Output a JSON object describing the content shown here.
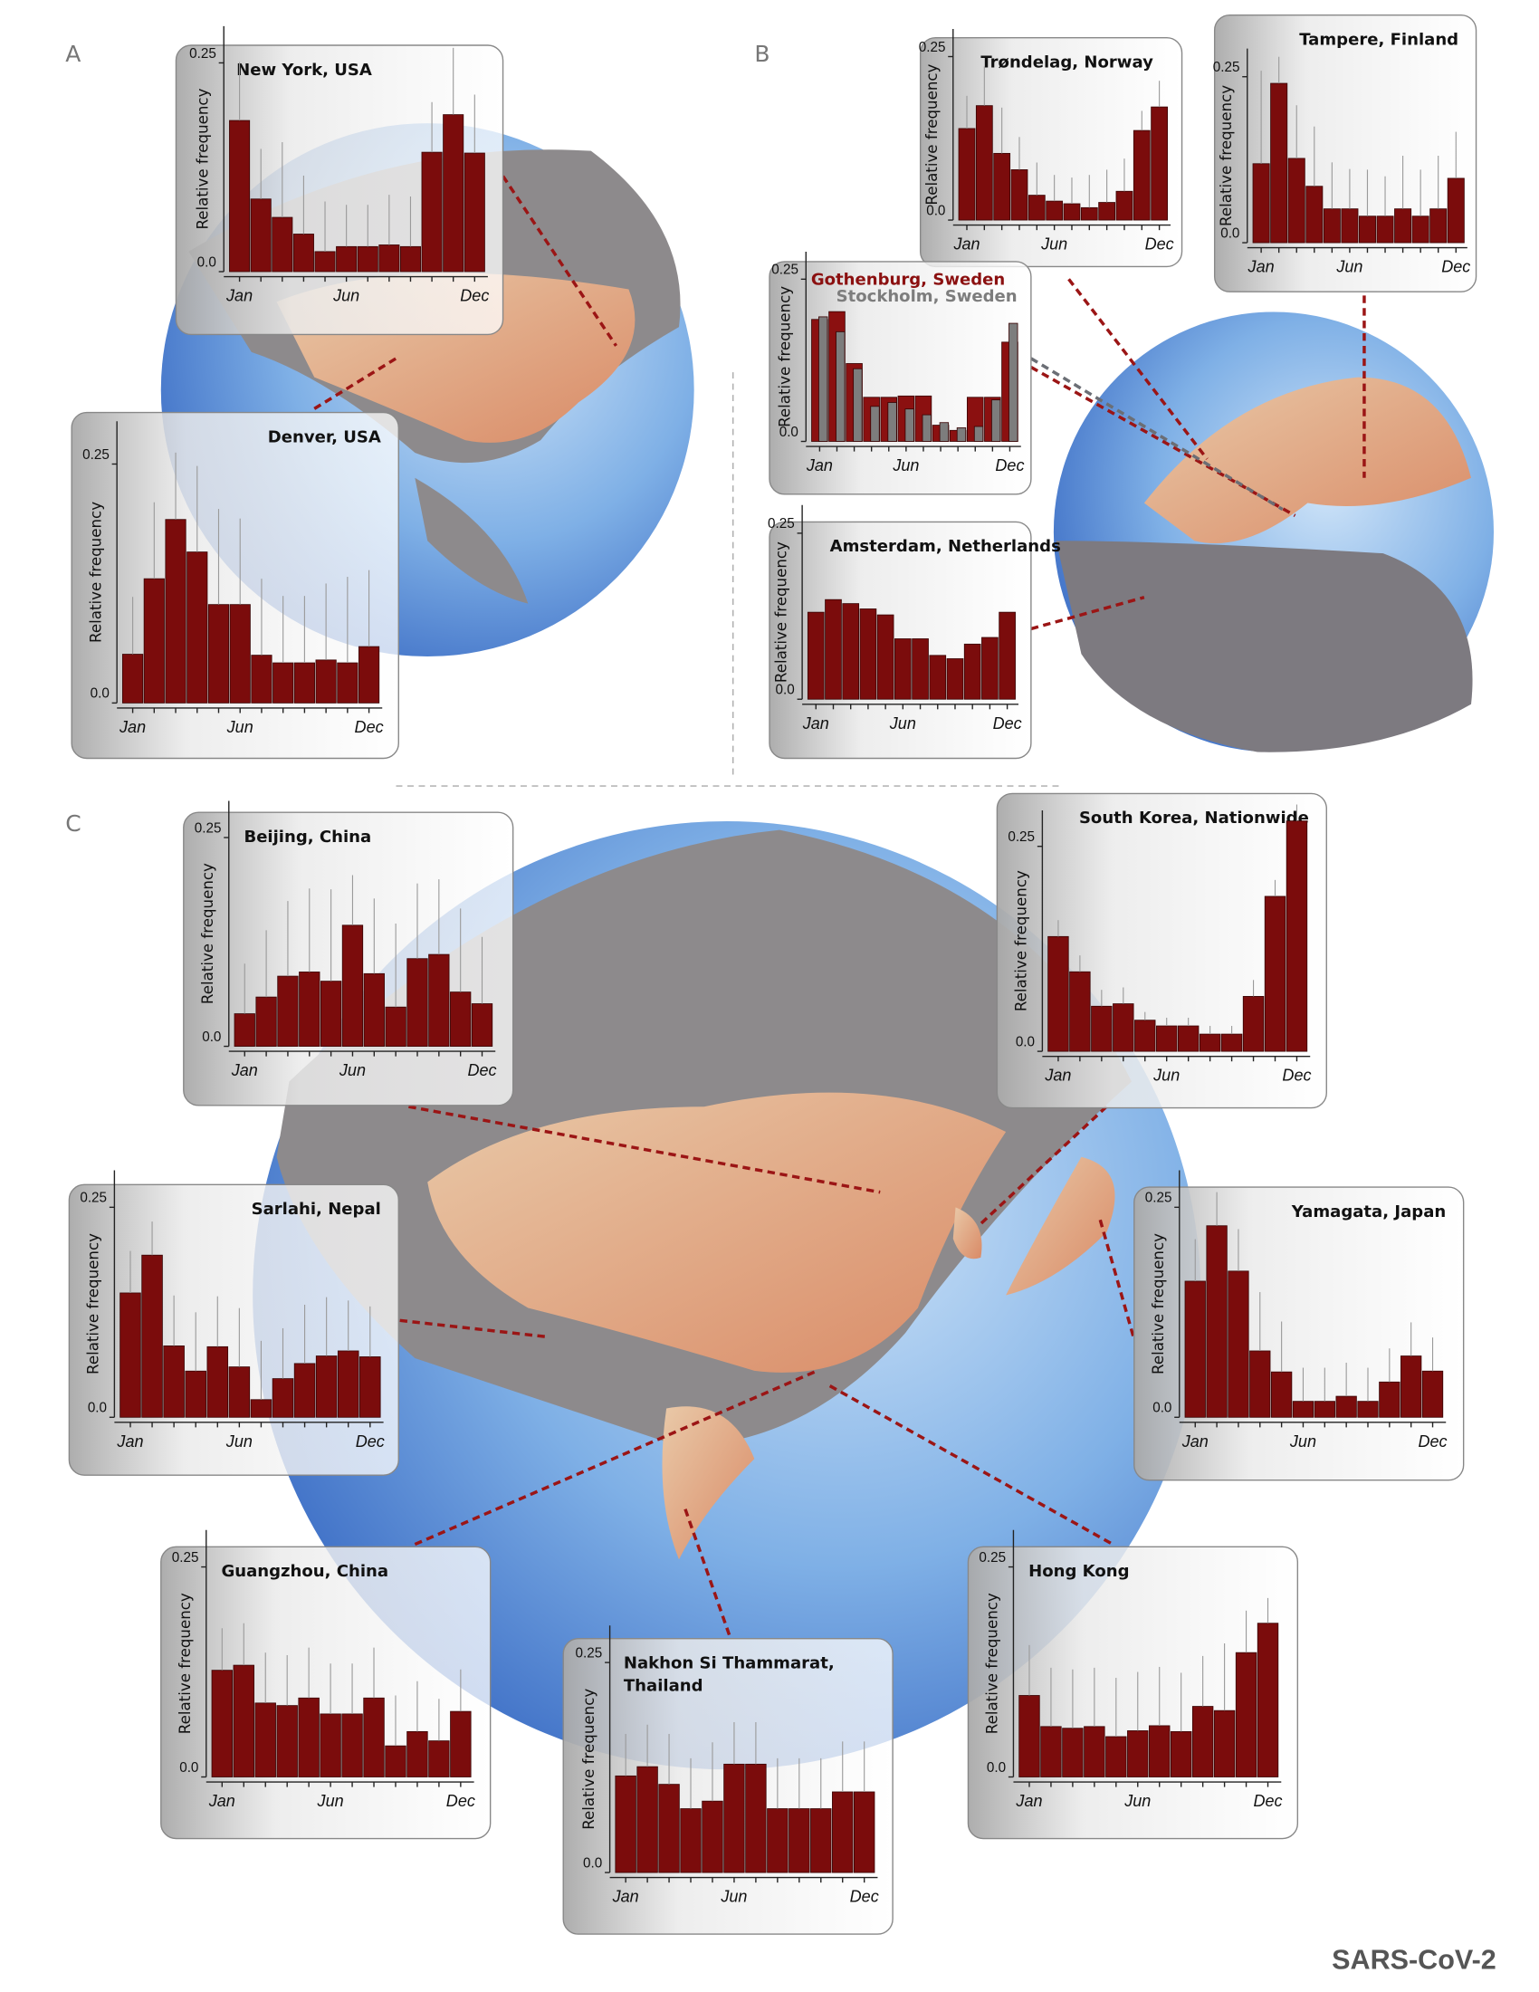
{
  "panel_labels": [
    "A",
    "B",
    "C"
  ],
  "footer": "SARS-CoV-2",
  "chart_data": [
    {
      "type": "bar",
      "title": "New York, USA",
      "ylabel": "Relative frequency",
      "categories": [
        "Jan",
        null,
        null,
        null,
        null,
        "Jun",
        null,
        null,
        null,
        null,
        null,
        "Dec"
      ],
      "series": [
        {
          "color": "#7b0c0c",
          "values": [
            0.181,
            0.087,
            0.065,
            0.045,
            0.024,
            0.03,
            0.03,
            0.032,
            0.03,
            0.143,
            0.188,
            0.142
          ],
          "errors": [
            0.07,
            0.06,
            0.09,
            0.07,
            0.06,
            0.05,
            0.05,
            0.06,
            0.06,
            0.06,
            0.08,
            0.07
          ]
        }
      ],
      "ylim": [
        0,
        0.3
      ],
      "yticks": [
        {
          "value": 0,
          "label": "0.0"
        },
        0.25
      ]
    },
    {
      "type": "bar",
      "title": "Denver, USA",
      "ylabel": "Relative frequency",
      "categories": [
        "Jan",
        null,
        null,
        null,
        null,
        "Jun",
        null,
        null,
        null,
        null,
        null,
        "Dec"
      ],
      "series": [
        {
          "color": "#7b0c0c",
          "values": [
            0.051,
            0.13,
            0.192,
            0.158,
            0.103,
            0.103,
            0.05,
            0.042,
            0.042,
            0.045,
            0.042,
            0.059
          ],
          "errors": [
            0.06,
            0.08,
            0.07,
            0.09,
            0.1,
            0.09,
            0.08,
            0.07,
            0.07,
            0.08,
            0.09,
            0.08
          ]
        }
      ],
      "ylim": [
        0,
        0.3
      ],
      "yticks": [
        {
          "value": 0,
          "label": "0.0"
        },
        0.25
      ]
    },
    {
      "type": "bar",
      "title": "Trøndelag, Norway",
      "ylabel": "Relative frequency",
      "categories": [
        "Jan",
        null,
        null,
        null,
        null,
        "Jun",
        null,
        null,
        null,
        null,
        null,
        "Dec"
      ],
      "series": [
        {
          "color": "#7b0c0c",
          "values": [
            0.14,
            0.175,
            0.102,
            0.077,
            0.038,
            0.029,
            0.025,
            0.019,
            0.027,
            0.044,
            0.137,
            0.173
          ],
          "errors": [
            0.05,
            0.06,
            0.07,
            0.05,
            0.05,
            0.04,
            0.04,
            0.05,
            0.05,
            0.05,
            0.03,
            0.04
          ]
        }
      ],
      "ylim": [
        0,
        0.3
      ],
      "yticks": [
        {
          "value": 0,
          "label": "0.0"
        },
        0.25
      ]
    },
    {
      "type": "bar",
      "title": "Tampere, Finland",
      "ylabel": "Relative frequency",
      "categories": [
        "Jan",
        null,
        null,
        null,
        null,
        "Jun",
        null,
        null,
        null,
        null,
        null,
        "Dec"
      ],
      "series": [
        {
          "color": "#7b0c0c",
          "values": [
            0.119,
            0.24,
            0.127,
            0.085,
            0.051,
            0.051,
            0.04,
            0.04,
            0.051,
            0.04,
            0.051,
            0.097
          ],
          "errors": [
            0.14,
            0.04,
            0.08,
            0.09,
            0.07,
            0.06,
            0.07,
            0.06,
            0.08,
            0.07,
            0.08,
            0.07
          ]
        }
      ],
      "ylim": [
        0,
        0.3
      ],
      "yticks": [
        {
          "value": 0,
          "label": "0.0"
        },
        0.25
      ]
    },
    {
      "type": "bar",
      "ylabel": "Relative frequency",
      "categories": [
        "Jan",
        null,
        null,
        null,
        null,
        "Jun",
        null,
        null,
        null,
        null,
        null,
        "Dec"
      ],
      "series": [
        {
          "name": "Gothenburg, Sweden",
          "color": "#8b1010",
          "values": [
            0.188,
            0.2,
            0.12,
            0.068,
            0.068,
            0.07,
            0.07,
            0.025,
            0.017,
            0.068,
            0.068,
            0.153
          ]
        },
        {
          "name": "Stockholm, Sweden",
          "color": "#7d7d7d",
          "values": [
            0.192,
            0.169,
            0.112,
            0.054,
            0.06,
            0.05,
            0.041,
            0.029,
            0.021,
            0.023,
            0.064,
            0.182
          ]
        }
      ],
      "ylim": [
        0,
        0.3
      ],
      "yticks": [
        {
          "value": 0,
          "label": "0.0"
        },
        0.25
      ]
    },
    {
      "type": "bar",
      "title": "Amsterdam, Netherlands",
      "ylabel": "Relative frequency",
      "categories": [
        "Jan",
        null,
        null,
        null,
        null,
        "Jun",
        null,
        null,
        null,
        null,
        null,
        "Dec"
      ],
      "series": [
        {
          "color": "#7b0c0c",
          "values": [
            0.131,
            0.15,
            0.144,
            0.136,
            0.127,
            0.091,
            0.091,
            0.066,
            0.061,
            0.083,
            0.093,
            0.131
          ]
        }
      ],
      "ylim": [
        0,
        0.3
      ],
      "yticks": [
        {
          "value": 0,
          "label": "0.0"
        },
        0.25
      ]
    },
    {
      "type": "bar",
      "title": "Beijing, China",
      "ylabel": "Relative frequency",
      "categories": [
        "Jan",
        null,
        null,
        null,
        null,
        "Jun",
        null,
        null,
        null,
        null,
        null,
        "Dec"
      ],
      "series": [
        {
          "color": "#7b0c0c",
          "values": [
            0.039,
            0.059,
            0.084,
            0.089,
            0.078,
            0.145,
            0.087,
            0.047,
            0.105,
            0.11,
            0.065,
            0.051
          ],
          "errors": [
            0.06,
            0.08,
            0.09,
            0.1,
            0.11,
            0.06,
            0.09,
            0.1,
            0.09,
            0.09,
            0.1,
            0.08
          ]
        }
      ],
      "ylim": [
        0,
        0.3
      ],
      "yticks": [
        {
          "value": 0,
          "label": "0.0"
        },
        0.25
      ]
    },
    {
      "type": "bar",
      "title": "South Korea, Nationwide",
      "ylabel": "Relative frequency",
      "categories": [
        "Jan",
        null,
        null,
        null,
        null,
        "Jun",
        null,
        null,
        null,
        null,
        null,
        "Dec"
      ],
      "series": [
        {
          "color": "#7b0c0c",
          "values": [
            0.14,
            0.097,
            0.055,
            0.058,
            0.038,
            0.031,
            0.031,
            0.021,
            0.021,
            0.067,
            0.189,
            0.281
          ],
          "errors": [
            0.02,
            0.02,
            0.02,
            0.02,
            0.01,
            0.01,
            0.01,
            0.01,
            0.01,
            0.02,
            0.02,
            0.02
          ]
        }
      ],
      "ylim": [
        0,
        0.3
      ],
      "yticks": [
        {
          "value": 0,
          "label": "0.0"
        },
        0.25
      ]
    },
    {
      "type": "bar",
      "title": "Sarlahi, Nepal",
      "ylabel": "Relative frequency",
      "categories": [
        "Jan",
        null,
        null,
        null,
        null,
        "Jun",
        null,
        null,
        null,
        null,
        null,
        "Dec"
      ],
      "series": [
        {
          "color": "#7b0c0c",
          "values": [
            0.148,
            0.193,
            0.085,
            0.055,
            0.084,
            0.06,
            0.021,
            0.046,
            0.064,
            0.073,
            0.079,
            0.072
          ],
          "errors": [
            0.05,
            0.04,
            0.06,
            0.07,
            0.06,
            0.07,
            0.07,
            0.06,
            0.07,
            0.07,
            0.06,
            0.06
          ]
        }
      ],
      "ylim": [
        0,
        0.3
      ],
      "yticks": [
        {
          "value": 0,
          "label": "0.0"
        },
        0.25
      ]
    },
    {
      "type": "bar",
      "title": "Yamagata, Japan",
      "ylabel": "Relative frequency",
      "categories": [
        "Jan",
        null,
        null,
        null,
        null,
        "Jun",
        null,
        null,
        null,
        null,
        null,
        "Dec"
      ],
      "series": [
        {
          "color": "#7b0c0c",
          "values": [
            0.162,
            0.228,
            0.174,
            0.079,
            0.054,
            0.019,
            0.019,
            0.025,
            0.019,
            0.042,
            0.073,
            0.055
          ],
          "errors": [
            0.05,
            0.04,
            0.05,
            0.07,
            0.06,
            0.04,
            0.04,
            0.04,
            0.04,
            0.04,
            0.04,
            0.04
          ]
        }
      ],
      "ylim": [
        0,
        0.3
      ],
      "yticks": [
        {
          "value": 0,
          "label": "0.0"
        },
        0.25
      ]
    },
    {
      "type": "bar",
      "title": "Guangzhou, China",
      "ylabel": "Relative frequency",
      "categories": [
        "Jan",
        null,
        null,
        null,
        null,
        "Jun",
        null,
        null,
        null,
        null,
        null,
        "Dec"
      ],
      "series": [
        {
          "color": "#7b0c0c",
          "values": [
            0.127,
            0.133,
            0.088,
            0.085,
            0.094,
            0.075,
            0.075,
            0.094,
            0.037,
            0.054,
            0.043,
            0.078
          ],
          "errors": [
            0.05,
            0.05,
            0.06,
            0.06,
            0.06,
            0.06,
            0.06,
            0.06,
            0.06,
            0.06,
            0.05,
            0.05
          ]
        }
      ],
      "ylim": [
        0,
        0.3
      ],
      "yticks": [
        {
          "value": 0,
          "label": "0.0"
        },
        0.25
      ]
    },
    {
      "type": "bar",
      "title": "Hong Kong",
      "ylabel": "Relative frequency",
      "categories": [
        "Jan",
        null,
        null,
        null,
        null,
        "Jun",
        null,
        null,
        null,
        null,
        null,
        "Dec"
      ],
      "series": [
        {
          "color": "#7b0c0c",
          "values": [
            0.097,
            0.06,
            0.058,
            0.06,
            0.048,
            0.055,
            0.061,
            0.054,
            0.084,
            0.079,
            0.148,
            0.183
          ],
          "errors": [
            0.06,
            0.07,
            0.07,
            0.07,
            0.07,
            0.07,
            0.07,
            0.07,
            0.06,
            0.08,
            0.05,
            0.03
          ]
        }
      ],
      "ylim": [
        0,
        0.3
      ],
      "yticks": [
        {
          "value": 0,
          "label": "0.0"
        },
        0.25
      ]
    },
    {
      "type": "bar",
      "title": [
        "Nakhon Si Thammarat,",
        "Thailand"
      ],
      "ylabel": "Relative frequency",
      "categories": [
        "Jan",
        null,
        null,
        null,
        null,
        "Jun",
        null,
        null,
        null,
        null,
        null,
        "Dec"
      ],
      "series": [
        {
          "color": "#7b0c0c",
          "values": [
            0.115,
            0.126,
            0.105,
            0.076,
            0.085,
            0.129,
            0.129,
            0.076,
            0.076,
            0.076,
            0.096,
            0.096
          ],
          "errors": [
            0.05,
            0.05,
            0.06,
            0.06,
            0.07,
            0.05,
            0.05,
            0.06,
            0.06,
            0.06,
            0.06,
            0.06
          ]
        }
      ],
      "ylim": [
        0,
        0.3
      ],
      "yticks": [
        {
          "value": 0,
          "label": "0.0"
        },
        0.25
      ]
    }
  ]
}
